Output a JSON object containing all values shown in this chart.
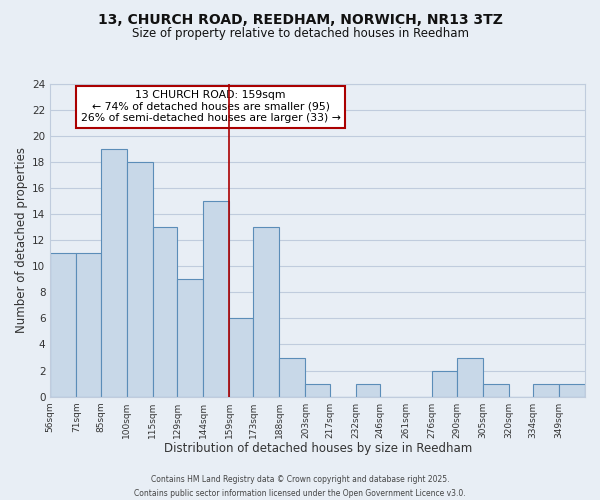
{
  "title": "13, CHURCH ROAD, REEDHAM, NORWICH, NR13 3TZ",
  "subtitle": "Size of property relative to detached houses in Reedham",
  "xlabel": "Distribution of detached houses by size in Reedham",
  "ylabel": "Number of detached properties",
  "bin_labels": [
    "56sqm",
    "71sqm",
    "85sqm",
    "100sqm",
    "115sqm",
    "129sqm",
    "144sqm",
    "159sqm",
    "173sqm",
    "188sqm",
    "203sqm",
    "217sqm",
    "232sqm",
    "246sqm",
    "261sqm",
    "276sqm",
    "290sqm",
    "305sqm",
    "320sqm",
    "334sqm",
    "349sqm"
  ],
  "bin_edges": [
    56,
    71,
    85,
    100,
    115,
    129,
    144,
    159,
    173,
    188,
    203,
    217,
    232,
    246,
    261,
    276,
    290,
    305,
    320,
    334,
    349,
    364
  ],
  "counts": [
    11,
    11,
    19,
    18,
    13,
    9,
    15,
    6,
    13,
    3,
    1,
    0,
    1,
    0,
    0,
    2,
    3,
    1,
    0,
    1,
    1
  ],
  "bar_facecolor": "#c8d8e8",
  "bar_edgecolor": "#5b8db8",
  "reference_line_x": 159,
  "annotation_title": "13 CHURCH ROAD: 159sqm",
  "annotation_line1": "← 74% of detached houses are smaller (95)",
  "annotation_line2": "26% of semi-detached houses are larger (33) →",
  "annotation_box_edgecolor": "#aa0000",
  "annotation_box_facecolor": "#ffffff",
  "grid_color": "#c0ccdd",
  "background_color": "#e8eef5",
  "footer1": "Contains HM Land Registry data © Crown copyright and database right 2025.",
  "footer2": "Contains public sector information licensed under the Open Government Licence v3.0.",
  "ylim": [
    0,
    24
  ],
  "yticks": [
    0,
    2,
    4,
    6,
    8,
    10,
    12,
    14,
    16,
    18,
    20,
    22,
    24
  ]
}
